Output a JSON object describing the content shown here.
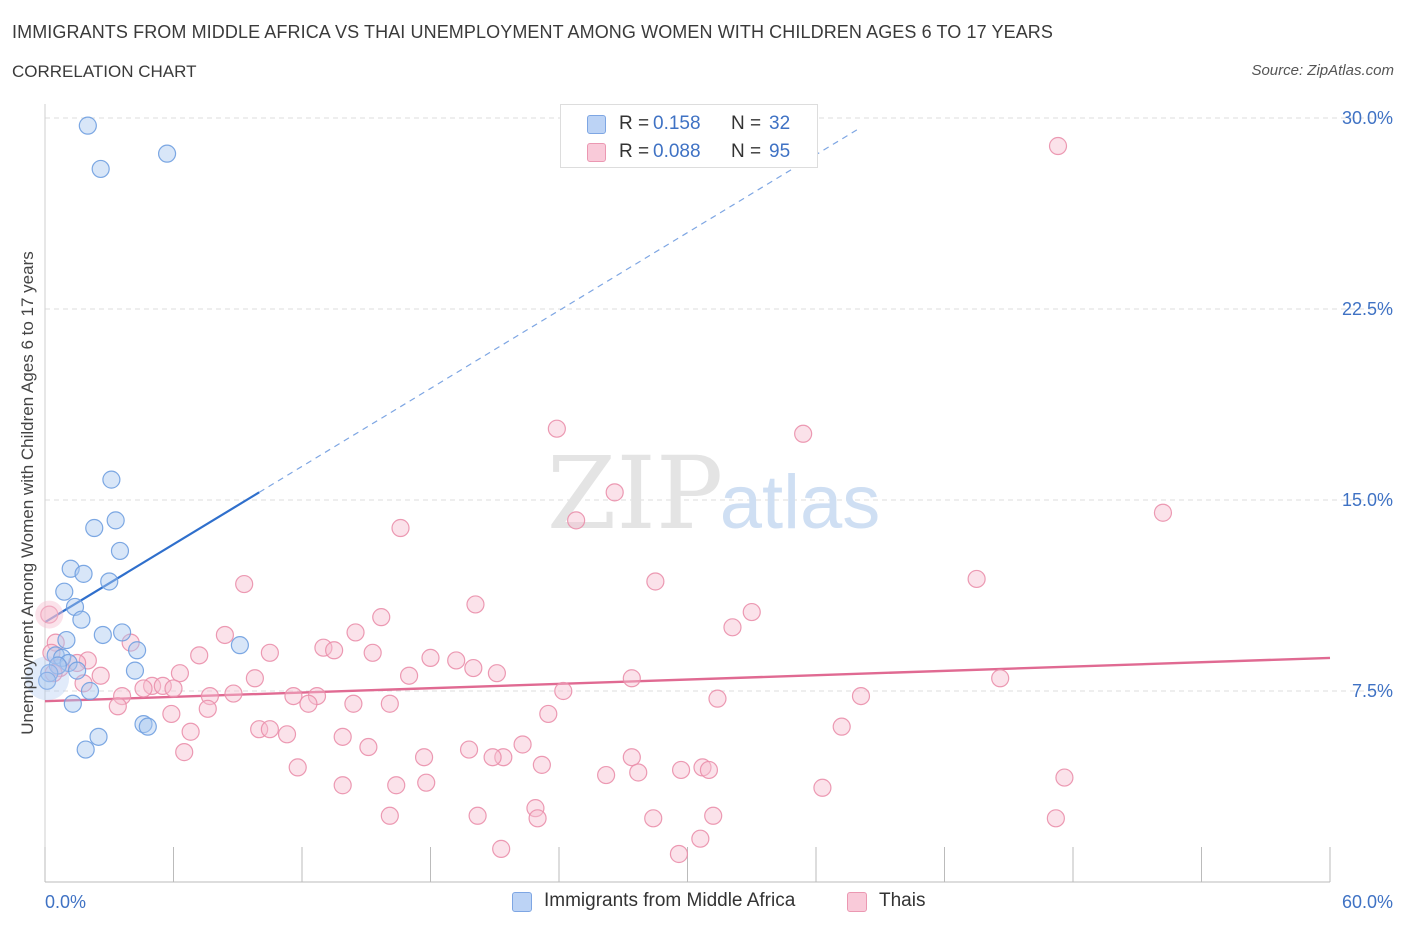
{
  "header": {
    "title": "IMMIGRANTS FROM MIDDLE AFRICA VS THAI UNEMPLOYMENT AMONG WOMEN WITH CHILDREN AGES 6 TO 17 YEARS",
    "subtitle": "CORRELATION CHART",
    "source": "Source: ZipAtlas.com"
  },
  "legend": {
    "rows": [
      {
        "r_label": "R =",
        "r_value": "0.158",
        "n_label": "N =",
        "n_value": "32"
      },
      {
        "r_label": "R =",
        "r_value": "0.088",
        "n_label": "N =",
        "n_value": "95"
      }
    ],
    "bottom": [
      "Immigrants from Middle Africa",
      "Thais"
    ]
  },
  "watermark": {
    "zip": "ZIP",
    "atlas": "atlas"
  },
  "chart_data": {
    "type": "scatter",
    "ylabel": "Unemployment Among Women with Children Ages 6 to 17 years",
    "xlim": [
      0,
      60
    ],
    "ylim": [
      0,
      30
    ],
    "x_ticks": [
      {
        "v": 0,
        "label": "0.0%"
      },
      {
        "v": 60,
        "label": "60.0%"
      }
    ],
    "y_ticks": [
      {
        "v": 7.5,
        "label": "7.5%"
      },
      {
        "v": 15,
        "label": "15.0%"
      },
      {
        "v": 22.5,
        "label": "22.5%"
      },
      {
        "v": 30,
        "label": "30.0%"
      }
    ],
    "grid": true,
    "legend_position": "top-center",
    "series": [
      {
        "name": "Immigrants from Middle Africa",
        "color": "#6f9fe0",
        "fill": "#a9c7f0",
        "trend": {
          "x": [
            0,
            10
          ],
          "y": [
            10.2,
            15.3
          ],
          "extend_to_x": 38,
          "line_color": "#2f6fcc"
        },
        "points": [
          [
            2.0,
            29.7
          ],
          [
            2.6,
            28.0
          ],
          [
            5.7,
            28.6
          ],
          [
            3.1,
            15.8
          ],
          [
            3.3,
            14.2
          ],
          [
            2.3,
            13.9
          ],
          [
            3.5,
            13.0
          ],
          [
            1.2,
            12.3
          ],
          [
            1.8,
            12.1
          ],
          [
            3.0,
            11.8
          ],
          [
            0.9,
            11.4
          ],
          [
            1.4,
            10.8
          ],
          [
            1.7,
            10.3
          ],
          [
            3.6,
            9.8
          ],
          [
            2.7,
            9.7
          ],
          [
            1.0,
            9.5
          ],
          [
            4.3,
            9.1
          ],
          [
            9.1,
            9.3
          ],
          [
            0.5,
            8.9
          ],
          [
            0.8,
            8.8
          ],
          [
            1.1,
            8.6
          ],
          [
            0.6,
            8.5
          ],
          [
            4.2,
            8.3
          ],
          [
            1.5,
            8.3
          ],
          [
            2.1,
            7.5
          ],
          [
            0.2,
            8.2
          ],
          [
            0.1,
            7.9
          ],
          [
            1.3,
            7.0
          ],
          [
            4.6,
            6.2
          ],
          [
            4.8,
            6.1
          ],
          [
            2.5,
            5.7
          ],
          [
            1.9,
            5.2
          ]
        ]
      },
      {
        "name": "Thais",
        "color": "#ea8fab",
        "fill": "#f6bfd0",
        "trend": {
          "x": [
            0,
            60
          ],
          "y": [
            7.1,
            8.8
          ],
          "line_color": "#e06a92"
        },
        "points": [
          [
            47.3,
            28.9
          ],
          [
            23.9,
            17.8
          ],
          [
            35.4,
            17.6
          ],
          [
            26.6,
            15.3
          ],
          [
            52.2,
            14.5
          ],
          [
            16.6,
            13.9
          ],
          [
            24.8,
            14.2
          ],
          [
            43.5,
            11.9
          ],
          [
            28.5,
            11.8
          ],
          [
            9.3,
            11.7
          ],
          [
            20.1,
            10.9
          ],
          [
            33.0,
            10.6
          ],
          [
            15.7,
            10.4
          ],
          [
            32.1,
            10.0
          ],
          [
            14.5,
            9.8
          ],
          [
            8.4,
            9.7
          ],
          [
            4.0,
            9.4
          ],
          [
            13.0,
            9.2
          ],
          [
            13.5,
            9.1
          ],
          [
            10.5,
            9.0
          ],
          [
            15.3,
            9.0
          ],
          [
            7.2,
            8.9
          ],
          [
            18.0,
            8.8
          ],
          [
            19.2,
            8.7
          ],
          [
            2.0,
            8.7
          ],
          [
            1.5,
            8.6
          ],
          [
            0.7,
            8.4
          ],
          [
            20.0,
            8.4
          ],
          [
            21.1,
            8.2
          ],
          [
            6.3,
            8.2
          ],
          [
            17.0,
            8.1
          ],
          [
            2.6,
            8.1
          ],
          [
            9.8,
            8.0
          ],
          [
            27.4,
            8.0
          ],
          [
            44.6,
            8.0
          ],
          [
            1.8,
            7.8
          ],
          [
            5.0,
            7.7
          ],
          [
            5.5,
            7.7
          ],
          [
            6.0,
            7.6
          ],
          [
            4.6,
            7.6
          ],
          [
            24.2,
            7.5
          ],
          [
            8.8,
            7.4
          ],
          [
            7.7,
            7.3
          ],
          [
            12.7,
            7.3
          ],
          [
            11.6,
            7.3
          ],
          [
            3.6,
            7.3
          ],
          [
            38.1,
            7.3
          ],
          [
            31.4,
            7.2
          ],
          [
            12.3,
            7.0
          ],
          [
            14.4,
            7.0
          ],
          [
            16.1,
            7.0
          ],
          [
            3.4,
            6.9
          ],
          [
            7.6,
            6.8
          ],
          [
            5.9,
            6.6
          ],
          [
            23.5,
            6.6
          ],
          [
            37.2,
            6.1
          ],
          [
            10.0,
            6.0
          ],
          [
            10.5,
            6.0
          ],
          [
            11.3,
            5.8
          ],
          [
            6.8,
            5.9
          ],
          [
            13.9,
            5.7
          ],
          [
            22.3,
            5.4
          ],
          [
            15.1,
            5.3
          ],
          [
            19.8,
            5.2
          ],
          [
            6.5,
            5.1
          ],
          [
            21.4,
            4.9
          ],
          [
            20.9,
            4.9
          ],
          [
            17.7,
            4.9
          ],
          [
            27.4,
            4.9
          ],
          [
            23.2,
            4.6
          ],
          [
            11.8,
            4.5
          ],
          [
            30.7,
            4.5
          ],
          [
            29.7,
            4.4
          ],
          [
            31.0,
            4.4
          ],
          [
            27.7,
            4.3
          ],
          [
            26.2,
            4.2
          ],
          [
            47.6,
            4.1
          ],
          [
            17.8,
            3.9
          ],
          [
            16.4,
            3.8
          ],
          [
            13.9,
            3.8
          ],
          [
            36.3,
            3.7
          ],
          [
            22.9,
            2.9
          ],
          [
            16.1,
            2.6
          ],
          [
            20.2,
            2.6
          ],
          [
            31.2,
            2.6
          ],
          [
            23.0,
            2.5
          ],
          [
            28.4,
            2.5
          ],
          [
            47.2,
            2.5
          ],
          [
            30.6,
            1.7
          ],
          [
            21.3,
            1.3
          ],
          [
            29.6,
            1.1
          ],
          [
            0.2,
            10.5
          ],
          [
            0.5,
            9.4
          ],
          [
            0.3,
            9.0
          ],
          [
            0.4,
            8.2
          ]
        ]
      }
    ]
  }
}
